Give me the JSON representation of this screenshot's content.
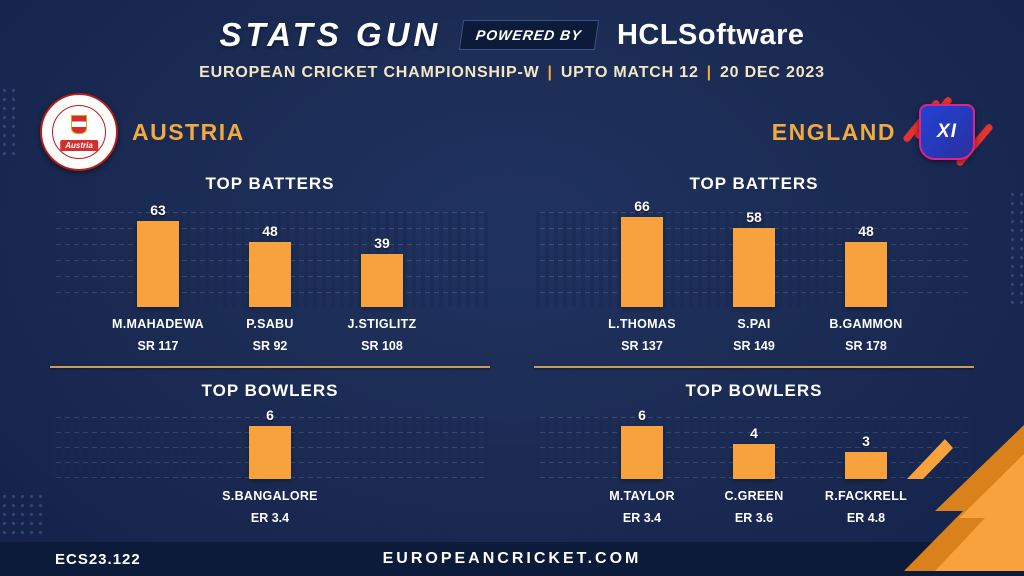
{
  "header": {
    "title": "STATS GUN",
    "powered_by": "POWERED BY",
    "brand_hcl": "HCL",
    "brand_software": "Software",
    "subtitle_parts": [
      "EUROPEAN CRICKET CHAMPIONSHIP-W",
      "UPTO MATCH 12",
      "20 DEC 2023"
    ],
    "separator": "|"
  },
  "teams": [
    {
      "name": "AUSTRIA",
      "logo_text": "Austria",
      "batters_title": "TOP BATTERS",
      "bowlers_title": "TOP BOWLERS"
    },
    {
      "name": "ENGLAND",
      "logo_text": "XI",
      "batters_title": "TOP BATTERS",
      "bowlers_title": "TOP BOWLERS"
    }
  ],
  "footer": {
    "code": "ECS23.122",
    "website": "EUROPEANCRICKET.COM"
  },
  "colors": {
    "background": "#1a2a52",
    "bar": "#f7a23c",
    "accent_gold": "#f0aa3d",
    "footer_bg": "#0d1b3a",
    "divider": "#c89f58"
  },
  "chart_data": [
    {
      "type": "bar",
      "team": "AUSTRIA",
      "title": "TOP BATTERS",
      "categories": [
        "M.MAHADEWA",
        "P.SABU",
        "J.STIGLITZ"
      ],
      "values": [
        63,
        48,
        39
      ],
      "bar_labels": [
        "SR 117",
        "SR 92",
        "SR 108"
      ],
      "ylim": [
        0,
        70
      ],
      "grid": true,
      "legend": false
    },
    {
      "type": "bar",
      "team": "AUSTRIA",
      "title": "TOP BOWLERS",
      "categories": [
        "S.BANGALORE"
      ],
      "values": [
        6
      ],
      "bar_labels": [
        "ER 3.4"
      ],
      "ylim": [
        0,
        7
      ],
      "grid": true,
      "legend": false
    },
    {
      "type": "bar",
      "team": "ENGLAND",
      "title": "TOP BATTERS",
      "categories": [
        "L.THOMAS",
        "S.PAI",
        "B.GAMMON"
      ],
      "values": [
        66,
        58,
        48
      ],
      "bar_labels": [
        "SR 137",
        "SR 149",
        "SR 178"
      ],
      "ylim": [
        0,
        70
      ],
      "grid": true,
      "legend": false
    },
    {
      "type": "bar",
      "team": "ENGLAND",
      "title": "TOP BOWLERS",
      "categories": [
        "M.TAYLOR",
        "C.GREEN",
        "R.FACKRELL"
      ],
      "values": [
        6,
        4,
        3
      ],
      "bar_labels": [
        "ER 3.4",
        "ER 3.6",
        "ER 4.8"
      ],
      "ylim": [
        0,
        7
      ],
      "grid": true,
      "legend": false
    }
  ]
}
